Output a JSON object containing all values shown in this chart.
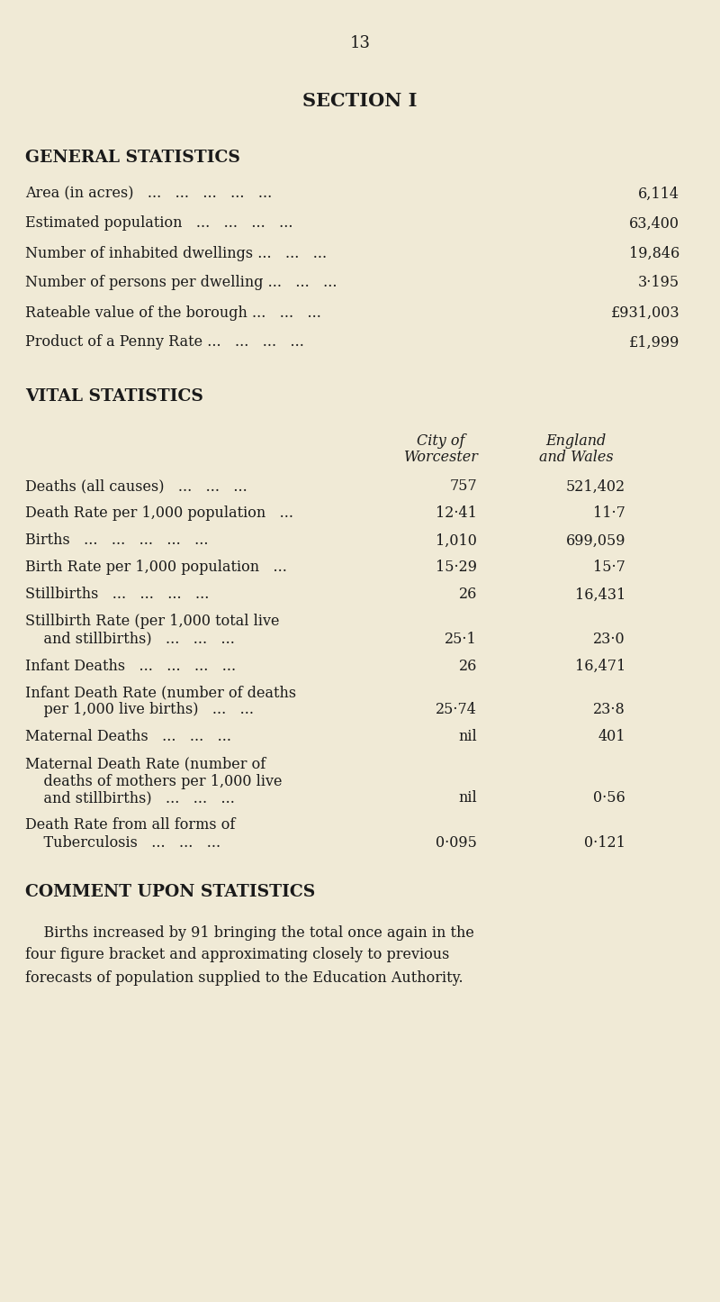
{
  "page_number": "13",
  "bg_color": "#f0ead6",
  "text_color": "#1a1a1a",
  "section_title": "SECTION I",
  "general_stats_title": "GENERAL STATISTICS",
  "vital_stats_title": "VITAL STATISTICS",
  "col1_header1": "City of",
  "col1_header2": "Worcester",
  "col2_header1": "England",
  "col2_header2": "and Wales",
  "gen_labels": [
    "Area (in acres)   ...   ...   ...   ...   ...",
    "Estimated population   ...   ...   ...   ...",
    "Number of inhabited dwellings ...   ...   ...",
    "Number of persons per dwelling ...   ...   ...",
    "Rateable value of the borough ...   ...   ...",
    "Product of a Penny Rate ...   ...   ...   ..."
  ],
  "gen_values": [
    "6,114",
    "63,400",
    "19,846",
    "3·195",
    "£931,003",
    "£1,999"
  ],
  "vital_rows": [
    {
      "lines": [
        "Deaths (all causes)   ...   ...   ..."
      ],
      "c1": "757",
      "c2": "521,402"
    },
    {
      "lines": [
        "Death Rate per 1,000 population   ..."
      ],
      "c1": "12·41",
      "c2": "11·7"
    },
    {
      "lines": [
        "Births   ...   ...   ...   ...   ..."
      ],
      "c1": "1,010",
      "c2": "699,059"
    },
    {
      "lines": [
        "Birth Rate per 1,000 population   ..."
      ],
      "c1": "15·29",
      "c2": "15·7"
    },
    {
      "lines": [
        "Stillbirths   ...   ...   ...   ..."
      ],
      "c1": "26",
      "c2": "16,431"
    },
    {
      "lines": [
        "Stillbirth Rate (per 1,000 total live",
        "    and stillbirths)   ...   ...   ..."
      ],
      "c1": "25·1",
      "c2": "23·0"
    },
    {
      "lines": [
        "Infant Deaths   ...   ...   ...   ..."
      ],
      "c1": "26",
      "c2": "16,471"
    },
    {
      "lines": [
        "Infant Death Rate (number of deaths",
        "    per 1,000 live births)   ...   ..."
      ],
      "c1": "25·74",
      "c2": "23·8"
    },
    {
      "lines": [
        "Maternal Deaths   ...   ...   ..."
      ],
      "c1": "nil",
      "c2": "401"
    },
    {
      "lines": [
        "Maternal Death Rate (number of",
        "    deaths of mothers per 1,000 live",
        "    and stillbirths)   ...   ...   ..."
      ],
      "c1": "nil",
      "c2": "0·56"
    },
    {
      "lines": [
        "Death Rate from all forms of",
        "    Tuberculosis   ...   ...   ..."
      ],
      "c1": "0·095",
      "c2": "0·121"
    }
  ],
  "comment_title": "COMMENT UPON STATISTICS",
  "comment_lines": [
    "    Births increased by 91 bringing the total once again in the",
    "four figure bracket and approximating closely to previous",
    "forecasts of population supplied to the Education Authority."
  ]
}
